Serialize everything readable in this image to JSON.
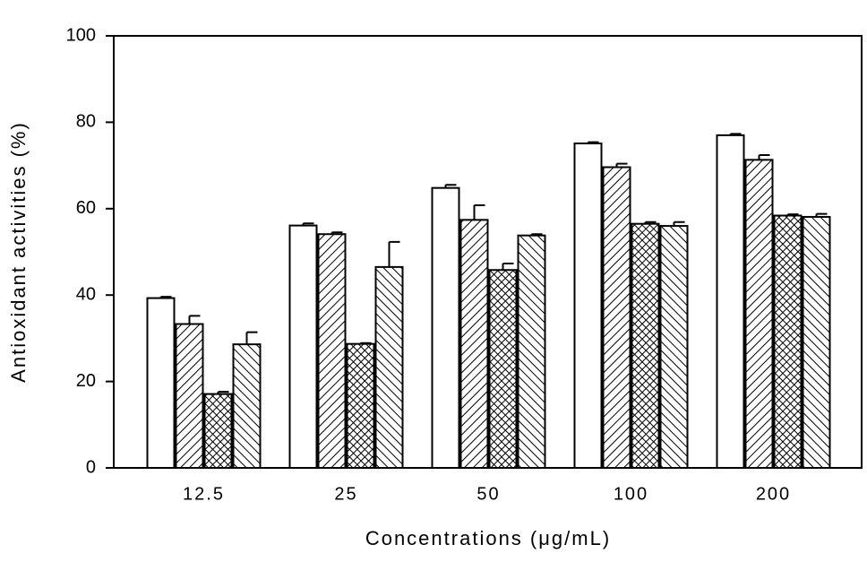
{
  "chart_data": {
    "type": "bar",
    "xlabel": "Concentrations (μg/mL)",
    "ylabel": "Antioxidant activities (%)",
    "categories": [
      "12.5",
      "25",
      "50",
      "100",
      "200"
    ],
    "series": [
      {
        "pattern": "none",
        "color": "#000000",
        "values": [
          39.3,
          56.1,
          64.8,
          75.1,
          77.0
        ],
        "errors": [
          0.3,
          0.5,
          0.7,
          0.3,
          0.3
        ]
      },
      {
        "pattern": "diagonal",
        "color": "#000000",
        "values": [
          33.3,
          54.1,
          57.4,
          69.6,
          71.3
        ],
        "errors": [
          1.9,
          0.4,
          3.4,
          0.8,
          1.1
        ]
      },
      {
        "pattern": "crosshatch",
        "color": "#000000",
        "values": [
          17.1,
          28.7,
          45.8,
          56.5,
          58.4
        ],
        "errors": [
          0.5,
          0.2,
          1.5,
          0.4,
          0.3
        ]
      },
      {
        "pattern": "back-diagonal",
        "color": "#000000",
        "values": [
          28.6,
          46.5,
          53.8,
          56.0,
          58.1
        ],
        "errors": [
          2.8,
          5.8,
          0.3,
          0.9,
          0.7
        ]
      }
    ],
    "ylim": [
      0,
      100
    ],
    "yticks": [
      0,
      20,
      40,
      60,
      80,
      100
    ],
    "grid": false
  }
}
